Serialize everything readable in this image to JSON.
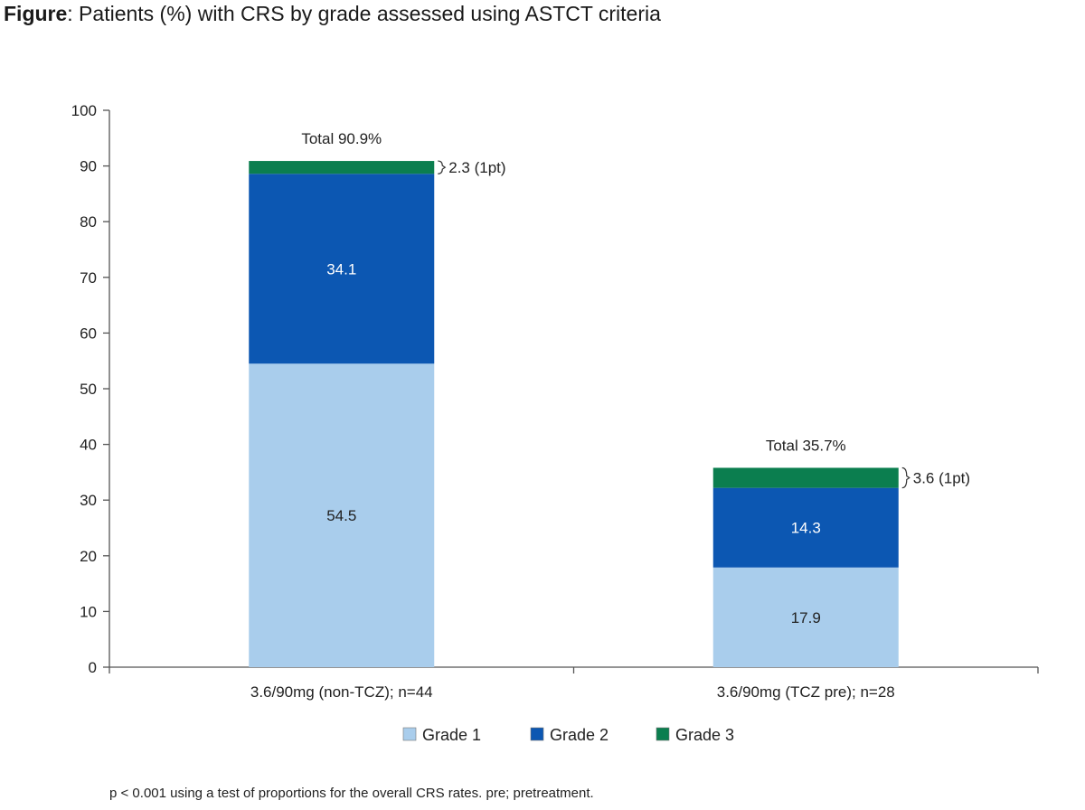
{
  "figure_title": {
    "prefix": "Figure",
    "text": ": Patients (%) with CRS by grade assessed using ASTCT criteria"
  },
  "footnote": "p < 0.001 using a test of proportions for the overall CRS rates. pre; pretreatment.",
  "chart_data": {
    "type": "bar",
    "stacked": true,
    "categories": [
      "3.6/90mg (non-TCZ); n=44",
      "3.6/90mg (TCZ pre); n=28"
    ],
    "series": [
      {
        "name": "Grade 1",
        "color": "#a9cdec",
        "label_color": "#222222",
        "values": [
          54.5,
          17.9
        ],
        "labels": [
          "54.5",
          "17.9"
        ]
      },
      {
        "name": "Grade 2",
        "color": "#0c57b2",
        "label_color": "#ffffff",
        "values": [
          34.1,
          14.3
        ],
        "labels": [
          "34.1",
          "14.3"
        ]
      },
      {
        "name": "Grade 3",
        "color": "#0b7e4f",
        "values": [
          2.3,
          3.6
        ]
      }
    ],
    "totals": [
      "Total 90.9%",
      "Total 35.7%"
    ],
    "annotations": [
      "2.3 (1pt)",
      "3.6 (1pt)"
    ],
    "yticks": [
      0,
      10,
      20,
      30,
      40,
      50,
      60,
      70,
      80,
      90,
      100
    ],
    "ylim": [
      0,
      100
    ],
    "legend_position": "bottom",
    "grid": false
  }
}
